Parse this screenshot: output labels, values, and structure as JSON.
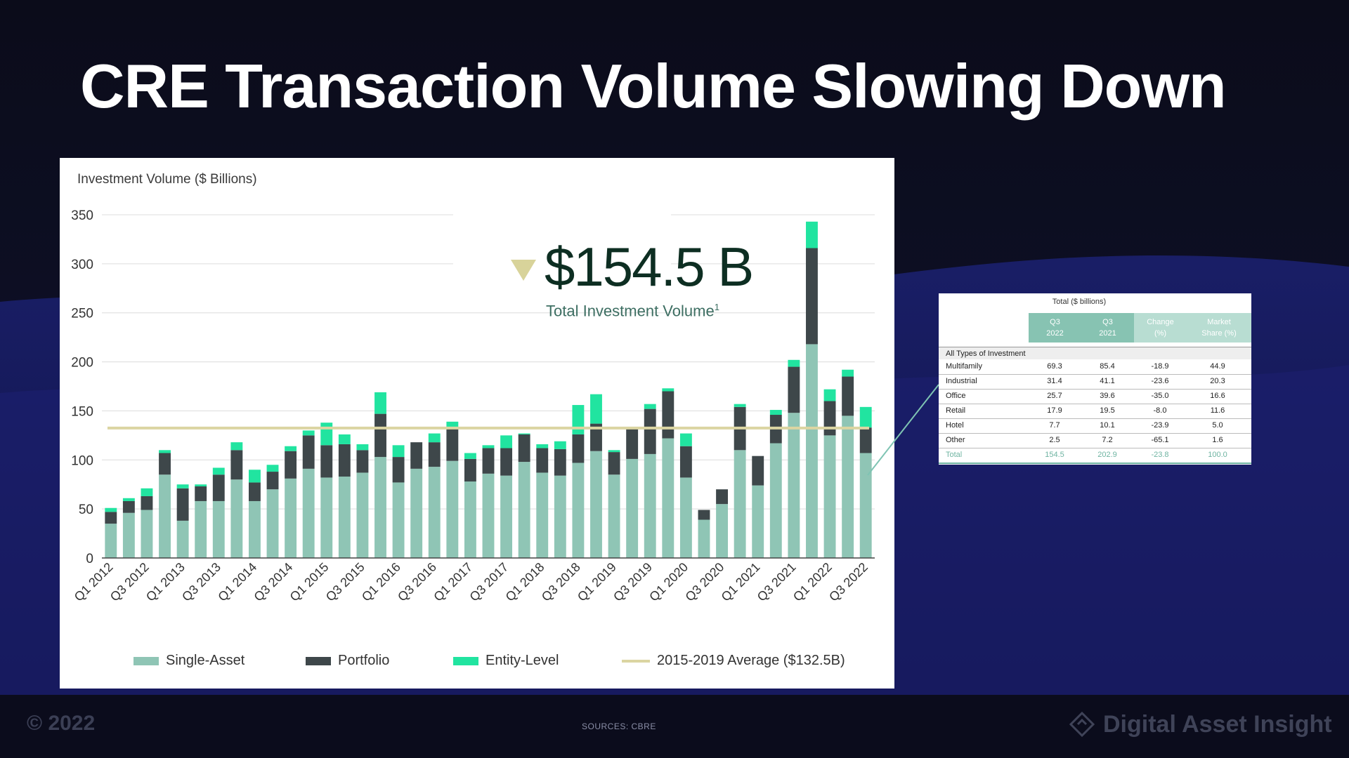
{
  "slide": {
    "title": "CRE Transaction Volume Slowing Down",
    "copyright": "© 2022",
    "sources": "SOURCES:   CBRE",
    "brand": "Digital Asset Insight"
  },
  "callout": {
    "value": "$154.5 B",
    "label": "Total Investment Volume",
    "footnote": "1"
  },
  "colors": {
    "single_asset": "#8fc5b5",
    "portfolio": "#3e474a",
    "entity_level": "#21e4a0",
    "average_line": "#dbd5a2"
  },
  "chart_data": {
    "type": "bar",
    "stacked": true,
    "title": "",
    "ylabel": "Investment Volume ($ Billions)",
    "xlabel": "",
    "ylim": [
      0,
      350
    ],
    "yticks": [
      0,
      50,
      100,
      150,
      200,
      250,
      300,
      350
    ],
    "grid": true,
    "categories": [
      "Q1 2012",
      "Q2 2012",
      "Q3 2012",
      "Q4 2012",
      "Q1 2013",
      "Q2 2013",
      "Q3 2013",
      "Q4 2013",
      "Q1 2014",
      "Q2 2014",
      "Q3 2014",
      "Q4 2014",
      "Q1 2015",
      "Q2 2015",
      "Q3 2015",
      "Q4 2015",
      "Q1 2016",
      "Q2 2016",
      "Q3 2016",
      "Q4 2016",
      "Q1 2017",
      "Q2 2017",
      "Q3 2017",
      "Q4 2017",
      "Q1 2018",
      "Q2 2018",
      "Q3 2018",
      "Q4 2018",
      "Q1 2019",
      "Q2 2019",
      "Q3 2019",
      "Q4 2019",
      "Q1 2020",
      "Q2 2020",
      "Q3 2020",
      "Q4 2020",
      "Q1 2021",
      "Q2 2021",
      "Q3 2021",
      "Q4 2021",
      "Q1 2022",
      "Q2 2022",
      "Q3 2022"
    ],
    "tick_labels": [
      "Q1 2012",
      "Q3 2012",
      "Q1 2013",
      "Q3 2013",
      "Q1 2014",
      "Q3 2014",
      "Q1 2015",
      "Q3 2015",
      "Q1 2016",
      "Q3 2016",
      "Q1 2017",
      "Q3 2017",
      "Q1 2018",
      "Q3 2018",
      "Q1 2019",
      "Q3 2019",
      "Q1 2020",
      "Q3 2020",
      "Q1 2021",
      "Q3 2021",
      "Q1 2022",
      "Q3 2022"
    ],
    "series": [
      {
        "name": "Single-Asset",
        "values": [
          35,
          46,
          49,
          85,
          38,
          58,
          58,
          80,
          58,
          70,
          81,
          91,
          82,
          83,
          87,
          103,
          77,
          91,
          93,
          99,
          78,
          86,
          84,
          98,
          87,
          84,
          97,
          109,
          85,
          101,
          106,
          122,
          82,
          39,
          55,
          110,
          74,
          117,
          148,
          218,
          125,
          145,
          107
        ]
      },
      {
        "name": "Portfolio",
        "values": [
          12,
          12,
          14,
          22,
          33,
          15,
          27,
          30,
          19,
          18,
          28,
          34,
          33,
          33,
          23,
          44,
          26,
          27,
          25,
          34,
          23,
          26,
          28,
          28,
          25,
          27,
          29,
          28,
          23,
          31,
          46,
          48,
          32,
          10,
          15,
          44,
          30,
          29,
          47,
          98,
          35,
          40,
          26
        ]
      },
      {
        "name": "Entity-Level",
        "values": [
          4,
          3,
          8,
          3,
          4,
          2,
          7,
          8,
          13,
          7,
          5,
          5,
          23,
          10,
          6,
          22,
          12,
          0,
          9,
          6,
          6,
          3,
          13,
          1,
          4,
          8,
          30,
          30,
          2,
          1,
          5,
          3,
          13,
          0,
          0,
          3,
          0,
          5,
          7,
          27,
          12,
          7,
          21
        ]
      }
    ],
    "reference_line": {
      "name": "2015-2019 Average ($132.5B)",
      "value": 132.5
    }
  },
  "table": {
    "caption": "Total ($ billions)",
    "headers": [
      {
        "line1": "Q3",
        "line2": "2022"
      },
      {
        "line1": "Q3",
        "line2": "2021"
      },
      {
        "line1": "Change",
        "line2": "(%)"
      },
      {
        "line1": "Market",
        "line2": "Share (%)"
      }
    ],
    "group_label": "All Types of Investment",
    "rows": [
      {
        "label": "Multifamily",
        "q3_2022": "69.3",
        "q3_2021": "85.4",
        "change": "-18.9",
        "share": "44.9"
      },
      {
        "label": "Industrial",
        "q3_2022": "31.4",
        "q3_2021": "41.1",
        "change": "-23.6",
        "share": "20.3"
      },
      {
        "label": "Office",
        "q3_2022": "25.7",
        "q3_2021": "39.6",
        "change": "-35.0",
        "share": "16.6"
      },
      {
        "label": "Retail",
        "q3_2022": "17.9",
        "q3_2021": "19.5",
        "change": "-8.0",
        "share": "11.6"
      },
      {
        "label": "Hotel",
        "q3_2022": "7.7",
        "q3_2021": "10.1",
        "change": "-23.9",
        "share": "5.0"
      },
      {
        "label": "Other",
        "q3_2022": "2.5",
        "q3_2021": "7.2",
        "change": "-65.1",
        "share": "1.6"
      }
    ],
    "total": {
      "label": "Total",
      "q3_2022": "154.5",
      "q3_2021": "202.9",
      "change": "-23.8",
      "share": "100.0"
    }
  }
}
